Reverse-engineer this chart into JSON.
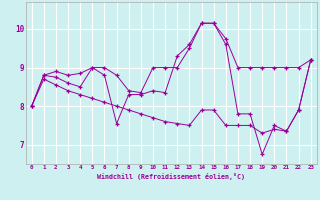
{
  "xlabel": "Windchill (Refroidissement éolien,°C)",
  "background_color": "#cff0f0",
  "line_color": "#990099",
  "grid_color": "#ffffff",
  "xlim": [
    -0.5,
    23.5
  ],
  "ylim": [
    6.5,
    10.7
  ],
  "yticks": [
    7,
    8,
    9,
    10
  ],
  "xticks": [
    0,
    1,
    2,
    3,
    4,
    5,
    6,
    7,
    8,
    9,
    10,
    11,
    12,
    13,
    14,
    15,
    16,
    17,
    18,
    19,
    20,
    21,
    22,
    23
  ],
  "series1_x": [
    0,
    1,
    2,
    3,
    4,
    5,
    6,
    7,
    8,
    9,
    10,
    11,
    12,
    13,
    14,
    15,
    16,
    17,
    18,
    19,
    20,
    21,
    22,
    23
  ],
  "series1_y": [
    8.0,
    8.8,
    8.9,
    8.8,
    8.85,
    9.0,
    9.0,
    8.8,
    8.4,
    8.35,
    9.0,
    9.0,
    9.0,
    9.5,
    10.15,
    10.15,
    9.75,
    9.0,
    9.0,
    9.0,
    9.0,
    9.0,
    9.0,
    9.2
  ],
  "series2_x": [
    0,
    1,
    2,
    3,
    4,
    5,
    6,
    7,
    8,
    9,
    10,
    11,
    12,
    13,
    14,
    15,
    16,
    17,
    18,
    19,
    20,
    21,
    22,
    23
  ],
  "series2_y": [
    8.0,
    8.8,
    8.75,
    8.6,
    8.5,
    9.0,
    8.8,
    7.55,
    8.3,
    8.3,
    8.4,
    8.35,
    9.3,
    9.6,
    10.15,
    10.15,
    9.6,
    7.8,
    7.8,
    6.75,
    7.5,
    7.35,
    7.9,
    9.2
  ],
  "series3_x": [
    0,
    1,
    2,
    3,
    4,
    5,
    6,
    7,
    8,
    9,
    10,
    11,
    12,
    13,
    14,
    15,
    16,
    17,
    18,
    19,
    20,
    21,
    22,
    23
  ],
  "series3_y": [
    8.0,
    8.7,
    8.55,
    8.4,
    8.3,
    8.2,
    8.1,
    8.0,
    7.9,
    7.8,
    7.7,
    7.6,
    7.55,
    7.5,
    7.9,
    7.9,
    7.5,
    7.5,
    7.5,
    7.3,
    7.4,
    7.35,
    7.9,
    9.2
  ]
}
